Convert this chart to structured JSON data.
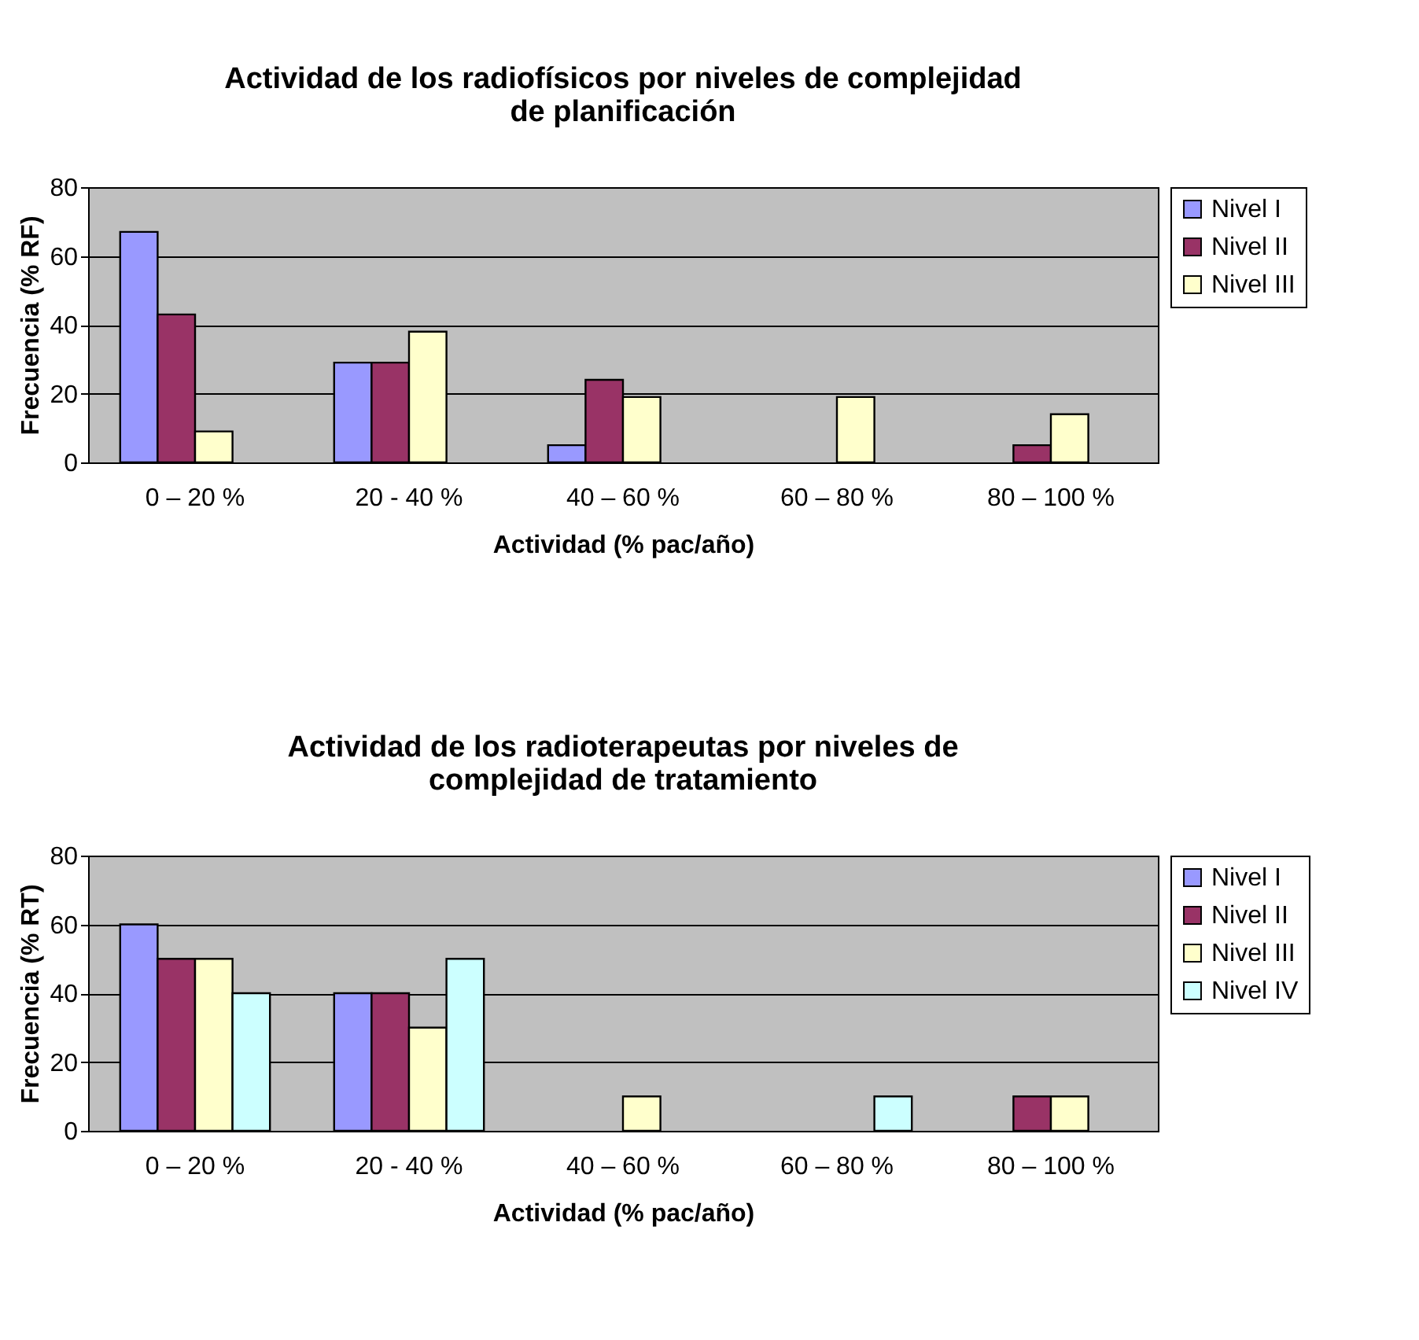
{
  "chart_data": [
    {
      "type": "bar",
      "title": "Actividad de los radiofísicos por niveles de complejidad\nde planificación",
      "xlabel": "Actividad (% pac/año)",
      "ylabel": "Frecuencia (% RF)",
      "categories": [
        "0 – 20 %",
        "20  - 40 %",
        "40 – 60 %",
        "60 – 80 %",
        "80 – 100 %"
      ],
      "series": [
        {
          "name": "Nivel I",
          "color": "#9999ff",
          "values": [
            67,
            29,
            5,
            null,
            null
          ]
        },
        {
          "name": "Nivel II",
          "color": "#993366",
          "values": [
            43,
            29,
            24,
            null,
            5
          ]
        },
        {
          "name": "Nivel III",
          "color": "#ffffcc",
          "values": [
            9,
            38,
            19,
            19,
            14
          ]
        }
      ],
      "ylim": [
        0,
        80
      ],
      "yticks": [
        0,
        20,
        40,
        60,
        80
      ],
      "grid": "y",
      "legend": "right"
    },
    {
      "type": "bar",
      "title": "Actividad de los radioterapeutas por niveles de\ncomplejidad de tratamiento",
      "xlabel": "Actividad (% pac/año)",
      "ylabel": "Frecuencia (% RT)",
      "categories": [
        "0 – 20 %",
        "20  - 40 %",
        "40 – 60 %",
        "60 – 80 %",
        "80 – 100 %"
      ],
      "series": [
        {
          "name": "Nivel I",
          "color": "#9999ff",
          "values": [
            60,
            40,
            null,
            null,
            null
          ]
        },
        {
          "name": "Nivel II",
          "color": "#993366",
          "values": [
            50,
            40,
            null,
            null,
            10
          ]
        },
        {
          "name": "Nivel III",
          "color": "#ffffcc",
          "values": [
            50,
            30,
            10,
            null,
            10
          ]
        },
        {
          "name": "Nivel IV",
          "color": "#ccffff",
          "values": [
            40,
            50,
            null,
            10,
            null
          ]
        }
      ],
      "ylim": [
        0,
        80
      ],
      "yticks": [
        0,
        20,
        40,
        60,
        80
      ],
      "grid": "y",
      "legend": "right"
    }
  ]
}
